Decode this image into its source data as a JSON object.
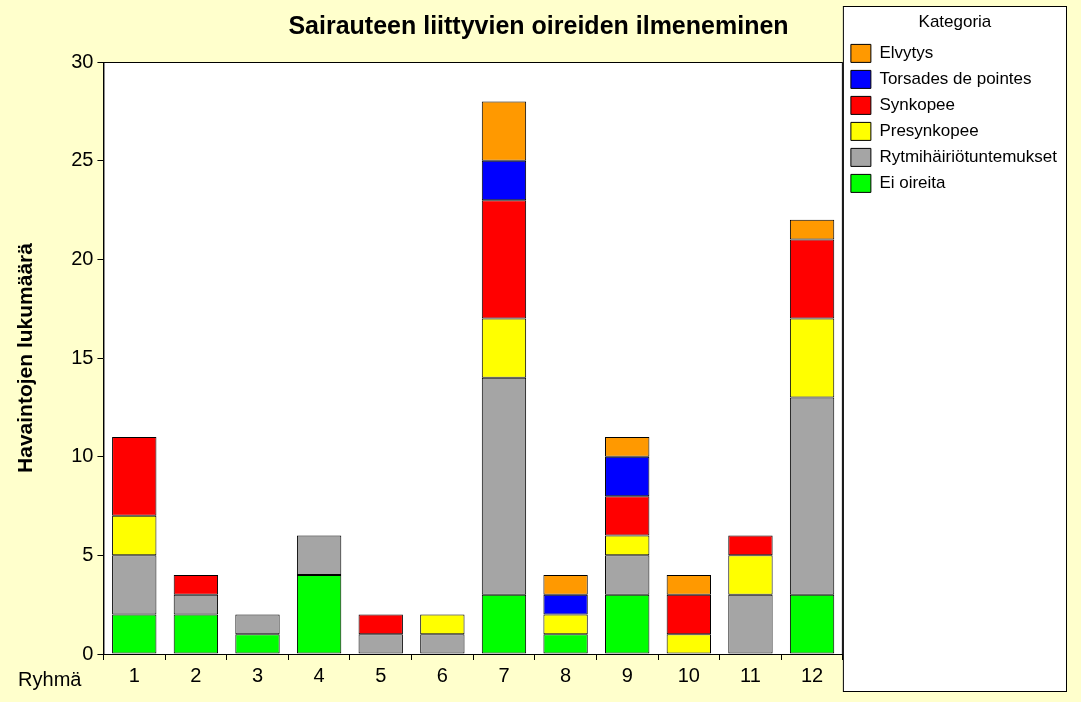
{
  "chart_data": {
    "type": "bar",
    "title": "Sairauteen liittyvien oireiden ilmeneminen",
    "x_label": "Ryhmä",
    "y_label": "Havaintojen lukumäärä",
    "legend_title": "Kategoria",
    "legend": "right",
    "stacked": true,
    "grid": false,
    "categories": [
      "1",
      "2",
      "3",
      "4",
      "5",
      "6",
      "7",
      "8",
      "9",
      "10",
      "11",
      "12"
    ],
    "series": [
      {
        "name": "Ei oireita",
        "color": "#00FF00",
        "values": [
          2,
          2,
          1,
          4,
          0,
          0,
          3,
          1,
          3,
          0,
          0,
          3
        ]
      },
      {
        "name": "Rytmihäiriötuntemukset",
        "color": "#A5A5A5",
        "values": [
          3,
          1,
          1,
          2,
          1,
          1,
          11,
          0,
          2,
          0,
          3,
          10
        ]
      },
      {
        "name": "Presynkopee",
        "color": "#FFFF00",
        "values": [
          2,
          0,
          0,
          0,
          0,
          1,
          3,
          1,
          1,
          1,
          2,
          4
        ]
      },
      {
        "name": "Synkopee",
        "color": "#FF0000",
        "values": [
          4,
          1,
          0,
          0,
          1,
          0,
          6,
          0,
          2,
          2,
          1,
          4
        ]
      },
      {
        "name": "Torsades de pointes",
        "color": "#0000FF",
        "values": [
          0,
          0,
          0,
          0,
          0,
          0,
          2,
          1,
          2,
          0,
          0,
          0
        ]
      },
      {
        "name": "Elvytys",
        "color": "#FF9900",
        "values": [
          0,
          0,
          0,
          0,
          0,
          0,
          3,
          1,
          1,
          1,
          0,
          1
        ]
      }
    ],
    "ylim": [
      0,
      30
    ],
    "yticks": [
      0,
      5,
      10,
      15,
      20,
      25,
      30
    ]
  }
}
